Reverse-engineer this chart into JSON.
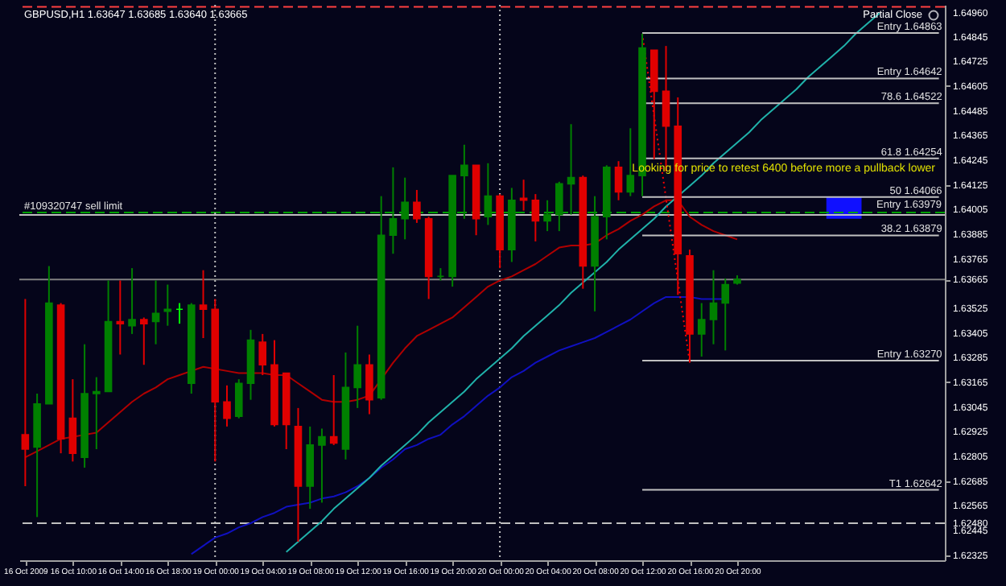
{
  "chart_data": {
    "type": "candlestick",
    "title": "GBPUSD,H1  1.63647 1.63685 1.63640 1.63665",
    "categories": [
      "16 Oct 2009",
      null,
      null,
      null,
      "16 Oct 10:00",
      null,
      null,
      null,
      "16 Oct 14:00",
      null,
      null,
      null,
      "16 Oct 18:00",
      null,
      null,
      null,
      "19 Oct 00:00",
      null,
      null,
      null,
      "19 Oct 04:00",
      null,
      null,
      null,
      "19 Oct 08:00",
      null,
      null,
      null,
      "19 Oct 12:00",
      null,
      null,
      null,
      "19 Oct 16:00",
      null,
      null,
      null,
      "19 Oct 20:00",
      null,
      null,
      null,
      "20 Oct 00:00",
      null,
      null,
      null,
      "20 Oct 04:00",
      null,
      null,
      null,
      "20 Oct 08:00",
      null,
      null,
      null,
      "20 Oct 12:00",
      null,
      null,
      null,
      "20 Oct 16:00",
      null,
      null,
      null,
      "20 Oct 20:00",
      null,
      null,
      null,
      null,
      null,
      null,
      null,
      null,
      null,
      null,
      null,
      null,
      null,
      null,
      null,
      null,
      null
    ],
    "ohlc": [
      [
        1.6291,
        1.6357,
        1.6266,
        1.6284
      ],
      [
        1.6285,
        1.6311,
        1.6251,
        1.6306
      ],
      [
        1.6306,
        1.6373,
        1.6306,
        1.6355
      ],
      [
        1.6354,
        1.6355,
        1.6282,
        1.6289
      ],
      [
        1.6299,
        1.6318,
        1.6278,
        1.6282
      ],
      [
        1.628,
        1.6335,
        1.6275,
        1.6311
      ],
      [
        1.6311,
        1.6319,
        1.6284,
        1.6312
      ],
      [
        1.6312,
        1.6366,
        1.6312,
        1.6346
      ],
      [
        1.6346,
        1.6366,
        1.633,
        1.6345
      ],
      [
        1.6344,
        1.6372,
        1.634,
        1.6347
      ],
      [
        1.6347,
        1.6348,
        1.6325,
        1.6345
      ],
      [
        1.6346,
        1.6366,
        1.6335,
        1.635
      ],
      [
        1.6351,
        1.6364,
        1.6344,
        1.6352
      ],
      [
        1.6352,
        1.6355,
        1.6345,
        1.6352
      ],
      [
        1.6316,
        1.6355,
        1.6311,
        1.6354
      ],
      [
        1.6354,
        1.6371,
        1.6338,
        1.6352
      ],
      [
        1.6352,
        1.6357,
        1.6278,
        1.6307
      ],
      [
        1.6307,
        1.6315,
        1.6295,
        1.6299
      ],
      [
        1.63,
        1.6318,
        1.6299,
        1.6316
      ],
      [
        1.6316,
        1.6342,
        1.6308,
        1.6337
      ],
      [
        1.6336,
        1.634,
        1.632,
        1.6325
      ],
      [
        1.6325,
        1.6337,
        1.6295,
        1.6296
      ],
      [
        1.6321,
        1.6321,
        1.6284,
        1.6296
      ],
      [
        1.6295,
        1.6304,
        1.6239,
        1.6266
      ],
      [
        1.6266,
        1.6295,
        1.6255,
        1.6286
      ],
      [
        1.6286,
        1.6294,
        1.6258,
        1.629
      ],
      [
        1.629,
        1.632,
        1.6286,
        1.6287
      ],
      [
        1.6284,
        1.6331,
        1.6279,
        1.6314
      ],
      [
        1.6314,
        1.6344,
        1.6304,
        1.6325
      ],
      [
        1.6325,
        1.633,
        1.6301,
        1.6308
      ],
      [
        1.6309,
        1.6407,
        1.6308,
        1.6388
      ],
      [
        1.6388,
        1.6421,
        1.6379,
        1.6396
      ],
      [
        1.6396,
        1.6416,
        1.6386,
        1.6404
      ],
      [
        1.6404,
        1.641,
        1.6394,
        1.6396
      ],
      [
        1.6396,
        1.6397,
        1.6357,
        1.6368
      ],
      [
        1.6368,
        1.6372,
        1.6366,
        1.6368
      ],
      [
        1.6368,
        1.6417,
        1.6363,
        1.6417
      ],
      [
        1.6417,
        1.6432,
        1.6396,
        1.6422
      ],
      [
        1.6422,
        1.6422,
        1.6388,
        1.6396
      ],
      [
        1.6397,
        1.6423,
        1.6393,
        1.6407
      ],
      [
        1.6407,
        1.6408,
        1.6372,
        1.6381
      ],
      [
        1.6381,
        1.6411,
        1.6375,
        1.6405
      ],
      [
        1.6406,
        1.6415,
        1.64,
        1.6405
      ],
      [
        1.6405,
        1.6408,
        1.6385,
        1.6395
      ],
      [
        1.6395,
        1.6405,
        1.639,
        1.6398
      ],
      [
        1.6398,
        1.6414,
        1.639,
        1.6413
      ],
      [
        1.6413,
        1.6442,
        1.6398,
        1.6416
      ],
      [
        1.6416,
        1.6417,
        1.6362,
        1.6373
      ],
      [
        1.6373,
        1.6407,
        1.6351,
        1.6397
      ],
      [
        1.6397,
        1.6422,
        1.6386,
        1.6421
      ],
      [
        1.6421,
        1.6424,
        1.6405,
        1.6409
      ],
      [
        1.6409,
        1.644,
        1.6407,
        1.6417
      ],
      [
        1.6417,
        1.6486,
        1.6407,
        1.6479
      ],
      [
        1.6478,
        1.6478,
        1.6425,
        1.6458
      ],
      [
        1.6458,
        1.648,
        1.6419,
        1.6441
      ],
      [
        1.6441,
        1.6455,
        1.6359,
        1.6379
      ],
      [
        1.6378,
        1.6381,
        1.6326,
        1.634
      ],
      [
        1.634,
        1.6355,
        1.6329,
        1.6347
      ],
      [
        1.6347,
        1.6371,
        1.6335,
        1.6355
      ],
      [
        1.6355,
        1.6367,
        1.6332,
        1.6364
      ],
      [
        1.63647,
        1.63685,
        1.6364,
        1.63665
      ],
      null,
      null,
      null,
      null,
      null,
      null,
      null,
      null,
      null,
      null,
      null,
      null,
      null,
      null,
      null,
      null,
      null
    ],
    "colors": [
      "#e00000",
      "#008000",
      "#008000",
      "#e00000",
      "#e00000",
      "#008000",
      "#008000",
      "#008000",
      "#e00000",
      "#008000",
      "#e00000",
      "#008000",
      "#008000",
      "#00ff00",
      "#008000",
      "#e00000",
      "#e00000",
      "#e00000",
      "#008000",
      "#008000",
      "#e00000",
      "#e00000",
      "#e00000",
      "#e00000",
      "#008000",
      "#008000",
      "#e00000",
      "#008000",
      "#008000",
      "#e00000",
      "#008000",
      "#008000",
      "#008000",
      "#e00000",
      "#e00000",
      "#008000",
      "#008000",
      "#008000",
      "#e00000",
      "#008000",
      "#e00000",
      "#008000",
      "#e00000",
      "#e00000",
      "#008000",
      "#008000",
      "#008000",
      "#e00000",
      "#008000",
      "#008000",
      "#e00000",
      "#008000",
      "#008000",
      "#e00000",
      "#e00000",
      "#e00000",
      "#e00000",
      "#008000",
      "#008000",
      "#008000",
      "#008000",
      null,
      null,
      null,
      null,
      null,
      null,
      null,
      null,
      null,
      null,
      null,
      null,
      null,
      null,
      null,
      null,
      null
    ],
    "ylim": [
      1.623,
      1.65
    ],
    "yticks": [
      {
        "value": 1.6496,
        "label": "1.64960"
      },
      {
        "value": 1.64845,
        "label": "1.64845"
      },
      {
        "value": 1.64725,
        "label": "1.64725"
      },
      {
        "value": 1.64605,
        "label": "1.64605"
      },
      {
        "value": 1.64485,
        "label": "1.64485"
      },
      {
        "value": 1.64365,
        "label": "1.64365"
      },
      {
        "value": 1.64245,
        "label": "1.64245"
      },
      {
        "value": 1.64125,
        "label": "1.64125"
      },
      {
        "value": 1.64005,
        "label": "1.64005"
      },
      {
        "value": 1.63885,
        "label": "1.63885"
      },
      {
        "value": 1.63765,
        "label": "1.63765"
      },
      {
        "value": 1.63665,
        "label": "1.63665"
      },
      {
        "value": 1.63525,
        "label": "1.63525"
      },
      {
        "value": 1.63405,
        "label": "1.63405"
      },
      {
        "value": 1.63285,
        "label": "1.63285"
      },
      {
        "value": 1.63165,
        "label": "1.63165"
      },
      {
        "value": 1.63045,
        "label": "1.63045"
      },
      {
        "value": 1.62925,
        "label": "1.62925"
      },
      {
        "value": 1.62805,
        "label": "1.62805"
      },
      {
        "value": 1.62685,
        "label": "1.62685"
      },
      {
        "value": 1.62565,
        "label": "1.62565"
      },
      {
        "value": 1.6248,
        "label": "1.62480"
      },
      {
        "value": 1.62445,
        "label": "1.62445"
      },
      {
        "value": 1.62325,
        "label": "1.62325"
      }
    ],
    "series": [
      {
        "type": "line",
        "color": "#b00000",
        "values": [
          1.628,
          1.6283,
          1.6286,
          1.6289,
          1.629,
          1.6291,
          1.6292,
          1.6297,
          1.6302,
          1.6307,
          1.6311,
          1.6314,
          1.6318,
          1.632,
          1.6322,
          1.6324,
          1.6323,
          1.6322,
          1.6321,
          1.6321,
          1.6321,
          1.632,
          1.632,
          1.6316,
          1.6312,
          1.6308,
          1.6307,
          1.6307,
          1.6308,
          1.631,
          1.6318,
          1.6326,
          1.6333,
          1.6339,
          1.6342,
          1.6345,
          1.6348,
          1.6353,
          1.6358,
          1.6363,
          1.6366,
          1.6368,
          1.6371,
          1.6374,
          1.6378,
          1.6382,
          1.6383,
          1.6383,
          1.6384,
          1.6388,
          1.6391,
          1.6395,
          1.6398,
          1.6402,
          1.6405,
          1.6405,
          1.6397,
          1.6393,
          1.639,
          1.6388,
          1.6386,
          null,
          null,
          null,
          null,
          null,
          null,
          null,
          null,
          null,
          null,
          null,
          null,
          null,
          null,
          null,
          null,
          null
        ]
      },
      {
        "type": "line",
        "color": "#1010c0",
        "values": [
          null,
          null,
          null,
          null,
          null,
          null,
          null,
          null,
          null,
          null,
          null,
          null,
          null,
          null,
          1.6233,
          1.6237,
          1.6241,
          1.6243,
          1.6246,
          1.6248,
          1.6251,
          1.6253,
          1.6256,
          1.6257,
          1.6258,
          1.626,
          1.6261,
          1.6263,
          1.6266,
          1.627,
          1.6275,
          1.6279,
          1.6284,
          1.6286,
          1.6289,
          1.6291,
          1.6296,
          1.63,
          1.6305,
          1.631,
          1.6314,
          1.6319,
          1.6322,
          1.6326,
          1.6329,
          1.6332,
          1.6334,
          1.6336,
          1.6338,
          1.6341,
          1.6344,
          1.6347,
          1.6351,
          1.6355,
          1.6358,
          1.6358,
          1.6358,
          1.6357,
          1.6357,
          1.6357,
          null,
          null,
          null,
          null,
          null,
          null,
          null,
          null,
          null,
          null,
          null,
          null,
          null,
          null,
          null,
          null,
          null,
          null
        ]
      },
      {
        "type": "line",
        "color": "#20b2aa",
        "values": [
          null,
          null,
          null,
          null,
          null,
          null,
          null,
          null,
          null,
          null,
          null,
          null,
          null,
          null,
          null,
          null,
          null,
          null,
          null,
          null,
          null,
          null,
          1.6234,
          1.6239,
          1.6244,
          1.6249,
          1.6255,
          1.626,
          1.6265,
          1.627,
          1.6276,
          1.6281,
          1.6286,
          1.6291,
          1.6297,
          1.6302,
          1.6307,
          1.6312,
          1.6318,
          1.6323,
          1.6328,
          1.6333,
          1.6339,
          1.6344,
          1.6349,
          1.6354,
          1.636,
          1.6365,
          1.637,
          1.6375,
          1.6381,
          1.6386,
          1.6391,
          1.6396,
          1.6402,
          1.6407,
          1.6412,
          1.6417,
          1.6423,
          1.6428,
          1.6433,
          1.6438,
          1.6444,
          1.6449,
          1.6454,
          1.6459,
          1.6465,
          1.647,
          1.6475,
          1.648,
          1.6486,
          1.6491,
          1.6496,
          null,
          null,
          null,
          null,
          null
        ]
      },
      {
        "type": "line",
        "color": "#ff0000",
        "line_style": "dotted",
        "values": [
          null,
          null,
          null,
          null,
          null,
          null,
          null,
          null,
          null,
          null,
          null,
          null,
          null,
          null,
          null,
          null,
          null,
          null,
          null,
          null,
          null,
          null,
          null,
          null,
          null,
          null,
          null,
          null,
          null,
          null,
          null,
          null,
          null,
          null,
          null,
          null,
          null,
          null,
          null,
          null,
          null,
          null,
          null,
          null,
          null,
          null,
          null,
          null,
          null,
          null,
          null,
          null,
          1.6486,
          1.6446,
          1.6406,
          1.6366,
          1.6326,
          null,
          null,
          null,
          null,
          null,
          null,
          null,
          null,
          null,
          null,
          null,
          null,
          null,
          null,
          null,
          null,
          null,
          null,
          null,
          null,
          null
        ]
      },
      {
        "type": "line",
        "name": "Entry 1.64863",
        "color": "#c0c0c0",
        "values": [
          null,
          null,
          null,
          null,
          null,
          null,
          null,
          null,
          null,
          null,
          null,
          null,
          null,
          null,
          null,
          null,
          null,
          null,
          null,
          null,
          null,
          null,
          null,
          null,
          null,
          null,
          null,
          null,
          null,
          null,
          null,
          null,
          null,
          null,
          null,
          null,
          null,
          null,
          null,
          null,
          null,
          null,
          null,
          null,
          null,
          null,
          null,
          null,
          null,
          null,
          null,
          null,
          1.64863,
          1.64863,
          1.64863,
          1.64863,
          1.64863,
          1.64863,
          1.64863,
          1.64863,
          1.64863,
          1.64863,
          1.64863,
          1.64863,
          1.64863,
          1.64863,
          1.64863,
          1.64863,
          1.64863,
          1.64863,
          1.64863,
          1.64863,
          1.64863,
          1.64863,
          1.64863,
          1.64863,
          1.64863,
          1.64863
        ]
      },
      {
        "type": "line",
        "name": "Entry 1.64642",
        "color": "#c0c0c0",
        "values": [
          null,
          null,
          null,
          null,
          null,
          null,
          null,
          null,
          null,
          null,
          null,
          null,
          null,
          null,
          null,
          null,
          null,
          null,
          null,
          null,
          null,
          null,
          null,
          null,
          null,
          null,
          null,
          null,
          null,
          null,
          null,
          null,
          null,
          null,
          null,
          null,
          null,
          null,
          null,
          null,
          null,
          null,
          null,
          null,
          null,
          null,
          null,
          null,
          null,
          null,
          null,
          null,
          1.64642,
          1.64642,
          1.64642,
          1.64642,
          1.64642,
          1.64642,
          1.64642,
          1.64642,
          1.64642,
          1.64642,
          1.64642,
          1.64642,
          1.64642,
          1.64642,
          1.64642,
          1.64642,
          1.64642,
          1.64642,
          1.64642,
          1.64642,
          1.64642,
          1.64642,
          1.64642,
          1.64642,
          1.64642,
          1.64642
        ]
      },
      {
        "type": "line",
        "name": "78.6 1.64522",
        "color": "#c0c0c0",
        "values": [
          null,
          null,
          null,
          null,
          null,
          null,
          null,
          null,
          null,
          null,
          null,
          null,
          null,
          null,
          null,
          null,
          null,
          null,
          null,
          null,
          null,
          null,
          null,
          null,
          null,
          null,
          null,
          null,
          null,
          null,
          null,
          null,
          null,
          null,
          null,
          null,
          null,
          null,
          null,
          null,
          null,
          null,
          null,
          null,
          null,
          null,
          null,
          null,
          null,
          null,
          null,
          null,
          1.64522,
          1.64522,
          1.64522,
          1.64522,
          1.64522,
          1.64522,
          1.64522,
          1.64522,
          1.64522,
          1.64522,
          1.64522,
          1.64522,
          1.64522,
          1.64522,
          1.64522,
          1.64522,
          1.64522,
          1.64522,
          1.64522,
          1.64522,
          1.64522,
          1.64522,
          1.64522,
          1.64522,
          1.64522,
          1.64522
        ]
      },
      {
        "type": "line",
        "name": "61.8 1.64254",
        "color": "#c0c0c0",
        "values": [
          null,
          null,
          null,
          null,
          null,
          null,
          null,
          null,
          null,
          null,
          null,
          null,
          null,
          null,
          null,
          null,
          null,
          null,
          null,
          null,
          null,
          null,
          null,
          null,
          null,
          null,
          null,
          null,
          null,
          null,
          null,
          null,
          null,
          null,
          null,
          null,
          null,
          null,
          null,
          null,
          null,
          null,
          null,
          null,
          null,
          null,
          null,
          null,
          null,
          null,
          null,
          null,
          1.64254,
          1.64254,
          1.64254,
          1.64254,
          1.64254,
          1.64254,
          1.64254,
          1.64254,
          1.64254,
          1.64254,
          1.64254,
          1.64254,
          1.64254,
          1.64254,
          1.64254,
          1.64254,
          1.64254,
          1.64254,
          1.64254,
          1.64254,
          1.64254,
          1.64254,
          1.64254,
          1.64254,
          1.64254,
          1.64254
        ]
      },
      {
        "type": "line",
        "name": "50 1.64066",
        "color": "#c0c0c0",
        "values": [
          null,
          null,
          null,
          null,
          null,
          null,
          null,
          null,
          null,
          null,
          null,
          null,
          null,
          null,
          null,
          null,
          null,
          null,
          null,
          null,
          null,
          null,
          null,
          null,
          null,
          null,
          null,
          null,
          null,
          null,
          null,
          null,
          null,
          null,
          null,
          null,
          null,
          null,
          null,
          null,
          null,
          null,
          null,
          null,
          null,
          null,
          null,
          null,
          null,
          null,
          null,
          null,
          1.64066,
          1.64066,
          1.64066,
          1.64066,
          1.64066,
          1.64066,
          1.64066,
          1.64066,
          1.64066,
          1.64066,
          1.64066,
          1.64066,
          1.64066,
          1.64066,
          1.64066,
          1.64066,
          1.64066,
          1.64066,
          1.64066,
          1.64066,
          1.64066,
          1.64066,
          1.64066,
          1.64066,
          1.64066,
          1.64066
        ]
      },
      {
        "type": "line",
        "name": "38.2 1.63879",
        "color": "#c0c0c0",
        "values": [
          null,
          null,
          null,
          null,
          null,
          null,
          null,
          null,
          null,
          null,
          null,
          null,
          null,
          null,
          null,
          null,
          null,
          null,
          null,
          null,
          null,
          null,
          null,
          null,
          null,
          null,
          null,
          null,
          null,
          null,
          null,
          null,
          null,
          null,
          null,
          null,
          null,
          null,
          null,
          null,
          null,
          null,
          null,
          null,
          null,
          null,
          null,
          null,
          null,
          null,
          null,
          null,
          1.63879,
          1.63879,
          1.63879,
          1.63879,
          1.63879,
          1.63879,
          1.63879,
          1.63879,
          1.63879,
          1.63879,
          1.63879,
          1.63879,
          1.63879,
          1.63879,
          1.63879,
          1.63879,
          1.63879,
          1.63879,
          1.63879,
          1.63879,
          1.63879,
          1.63879,
          1.63879,
          1.63879,
          1.63879,
          1.63879
        ]
      },
      {
        "type": "line",
        "name": "Entry 1.63270",
        "color": "#c0c0c0",
        "values": [
          null,
          null,
          null,
          null,
          null,
          null,
          null,
          null,
          null,
          null,
          null,
          null,
          null,
          null,
          null,
          null,
          null,
          null,
          null,
          null,
          null,
          null,
          null,
          null,
          null,
          null,
          null,
          null,
          null,
          null,
          null,
          null,
          null,
          null,
          null,
          null,
          null,
          null,
          null,
          null,
          null,
          null,
          null,
          null,
          null,
          null,
          null,
          null,
          null,
          null,
          null,
          null,
          1.6327,
          1.6327,
          1.6327,
          1.6327,
          1.6327,
          1.6327,
          1.6327,
          1.6327,
          1.6327,
          1.6327,
          1.6327,
          1.6327,
          1.6327,
          1.6327,
          1.6327,
          1.6327,
          1.6327,
          1.6327,
          1.6327,
          1.6327,
          1.6327,
          1.6327,
          1.6327,
          1.6327,
          1.6327,
          1.6327
        ]
      },
      {
        "type": "line",
        "name": "T1 1.62642",
        "color": "#c0c0c0",
        "values": [
          null,
          null,
          null,
          null,
          null,
          null,
          null,
          null,
          null,
          null,
          null,
          null,
          null,
          null,
          null,
          null,
          null,
          null,
          null,
          null,
          null,
          null,
          null,
          null,
          null,
          null,
          null,
          null,
          null,
          null,
          null,
          null,
          null,
          null,
          null,
          null,
          null,
          null,
          null,
          null,
          null,
          null,
          null,
          null,
          null,
          null,
          null,
          null,
          null,
          null,
          null,
          null,
          1.62642,
          1.62642,
          1.62642,
          1.62642,
          1.62642,
          1.62642,
          1.62642,
          1.62642,
          1.62642,
          1.62642,
          1.62642,
          1.62642,
          1.62642,
          1.62642,
          1.62642,
          1.62642,
          1.62642,
          1.62642,
          1.62642,
          1.62642,
          1.62642,
          1.62642,
          1.62642,
          1.62642,
          1.62642,
          1.62642
        ]
      }
    ],
    "ref_lines": [
      {
        "axis": "y",
        "value": 1.63979,
        "label": "Entry 1.63979",
        "color": "#c0c0c0"
      },
      {
        "axis": "y",
        "value": 1.6399,
        "label": "#109320747 sell limit",
        "color": "#00a000",
        "line_style": "dashed"
      },
      {
        "axis": "y",
        "value": 1.63665,
        "color": "#808080"
      },
      {
        "axis": "y",
        "value": 1.6248,
        "color": "#c0c0c0",
        "line_style": "dashed"
      },
      {
        "axis": "y",
        "value": 1.6499,
        "color": "#ff4040",
        "line_style": "dashed"
      },
      {
        "axis": "x",
        "value": "19 Oct 00:00",
        "color": "#c0c0c0",
        "line_style": "dotted"
      },
      {
        "axis": "x",
        "value": "20 Oct 00:00",
        "color": "#c0c0c0",
        "line_style": "dotted"
      }
    ],
    "annotations": [
      "Looking for price to retest 6400 before more a pullback lower",
      "Partial Close"
    ]
  }
}
